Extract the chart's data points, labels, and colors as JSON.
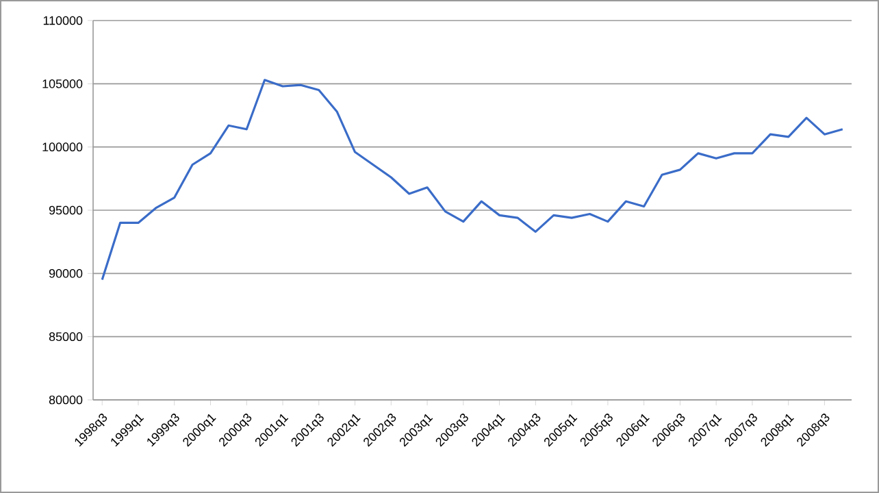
{
  "chart_data": {
    "type": "line",
    "categories": [
      "1998q3",
      null,
      "1999q1",
      null,
      "1999q3",
      null,
      "2000q1",
      null,
      "2000q3",
      null,
      "2001q1",
      null,
      "2001q3",
      null,
      "2002q1",
      null,
      "2002q3",
      null,
      "2003q1",
      null,
      "2003q3",
      null,
      "2004q1",
      null,
      "2004q3",
      null,
      "2005q1",
      null,
      "2005q3",
      null,
      "2006q1",
      null,
      "2006q3",
      null,
      "2007q1",
      null,
      "2007q3",
      null,
      "2008q1",
      null,
      "2008q3",
      null
    ],
    "series": [
      {
        "color": "#3a6cc8",
        "values": [
          89500,
          94000,
          94000,
          95200,
          96000,
          98600,
          99500,
          101700,
          101400,
          105300,
          104800,
          104900,
          104500,
          102800,
          99600,
          98600,
          97600,
          96300,
          96800,
          94900,
          94100,
          95700,
          94600,
          94400,
          93300,
          94600,
          94400,
          94700,
          94100,
          95700,
          95300,
          97800,
          98200,
          99500,
          99100,
          99500,
          99500,
          101000,
          100800,
          102300,
          101000,
          101400
        ]
      }
    ],
    "ylim": [
      80000,
      110000
    ],
    "yticks": [
      80000,
      85000,
      90000,
      95000,
      100000,
      105000,
      110000
    ],
    "grid": "y",
    "marker": "none",
    "line_style": "solid"
  }
}
